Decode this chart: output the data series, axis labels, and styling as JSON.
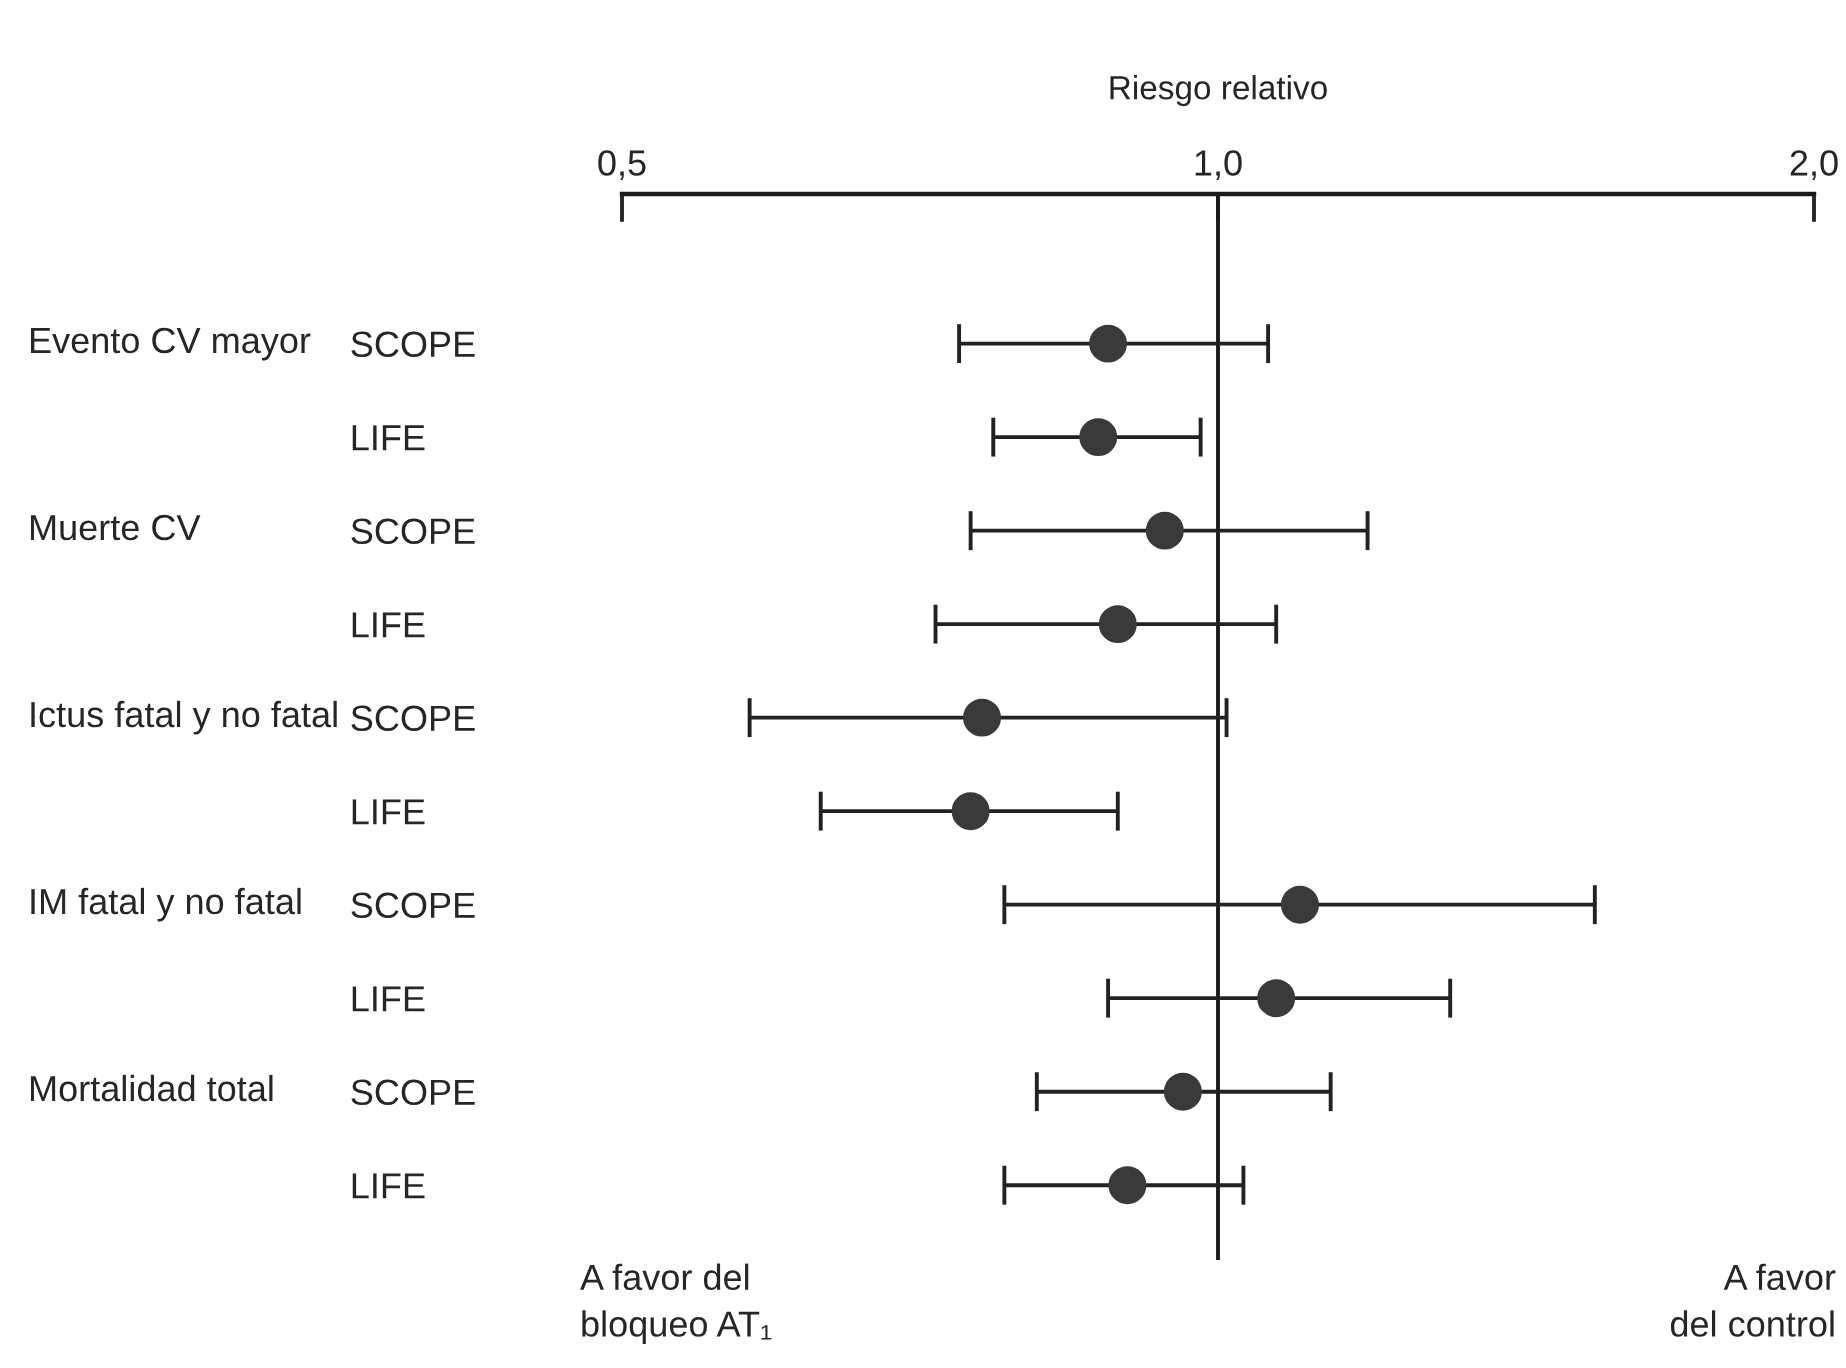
{
  "chart_data": {
    "type": "scatter",
    "orientation": "horizontal",
    "xlabel": "Riesgo relativo",
    "categories": [
      "SCOPE",
      "LIFE",
      "SCOPE",
      "LIFE",
      "SCOPE",
      "LIFE",
      "SCOPE",
      "LIFE",
      "SCOPE",
      "LIFE"
    ],
    "series": [
      {
        "color": "#3a3a3a",
        "values": [
          0.88,
          0.87,
          0.94,
          0.89,
          0.76,
          0.75,
          1.1,
          1.07,
          0.96,
          0.9
        ],
        "errors": [
          [
            0.74,
            1.06
          ],
          [
            0.77,
            0.98
          ],
          [
            0.75,
            1.19
          ],
          [
            0.72,
            1.07
          ],
          [
            0.58,
            1.01
          ],
          [
            0.63,
            0.89
          ],
          [
            0.78,
            1.55
          ],
          [
            0.88,
            1.31
          ],
          [
            0.81,
            1.14
          ],
          [
            0.78,
            1.03
          ]
        ]
      }
    ],
    "log": "x",
    "xlim": [
      0.5,
      2.0
    ],
    "xticks": [
      {
        "value": 0.5,
        "label": "0,5"
      },
      {
        "value": 1.0,
        "label": "1,0"
      },
      {
        "value": 2.0,
        "label": "2,0"
      }
    ],
    "ref_lines": [
      {
        "axis": "x",
        "value": 1.0,
        "color": "#1a1a1a"
      }
    ],
    "marker": "circle",
    "grid": false,
    "annotations": [
      "Evento CV mayor",
      "Muerte CV",
      "Ictus fatal y no fatal",
      "IM fatal y no fatal",
      "Mortalidad total",
      "A favor del\nbloqueo AT₁",
      "A favor\ndel control"
    ]
  }
}
